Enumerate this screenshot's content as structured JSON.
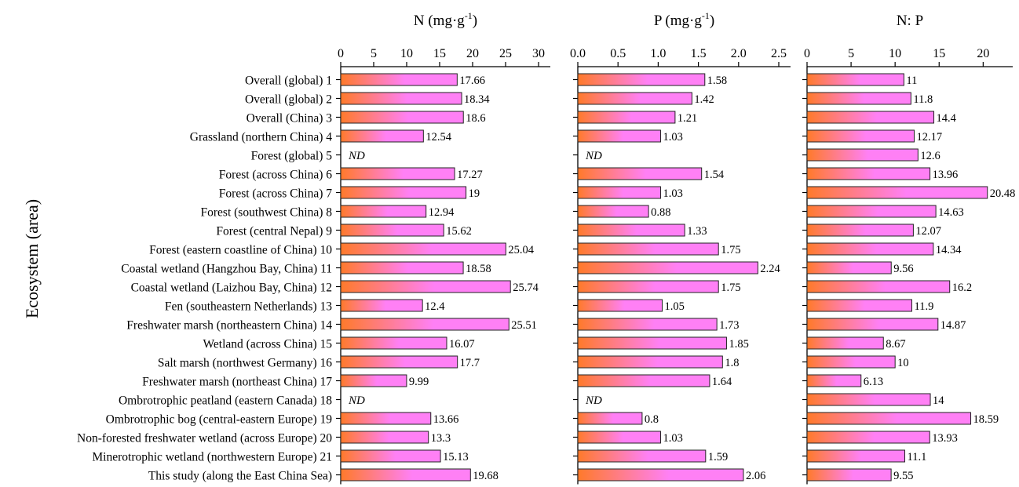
{
  "chart_data": {
    "type": "bar",
    "orientation": "horizontal",
    "ylabel": "Ecosystem (area)",
    "missing_label": "ND",
    "categories": [
      "Overall (global) 1",
      "Overall (global) 2",
      "Overall (China) 3",
      "Grassland (northern China) 4",
      "Forest (global) 5",
      "Forest (across China) 6",
      "Forest (across China) 7",
      "Forest (southwest China) 8",
      "Forest (central Nepal) 9",
      "Forest (eastern coastline of China) 10",
      "Coastal wetland (Hangzhou Bay, China) 11",
      "Coastal wetland (Laizhou Bay, China) 12",
      "Fen (southeastern Netherlands) 13",
      "Freshwater marsh (northeastern China) 14",
      "Wetland (across China) 15",
      "Salt marsh (northwest Germany) 16",
      "Freshwater marsh (northeast China) 17",
      "Ombrotrophic peatland (eastern Canada) 18",
      "Ombrotrophic bog (central-eastern Europe) 19",
      "Non-forested freshwater wetland (across Europe) 20",
      "Minerotrophic wetland (northwestern Europe) 21",
      "This study (along the East China Sea)"
    ],
    "panels": [
      {
        "title_main": "N (mg·g",
        "title_sup": "-1",
        "title_close": ")",
        "xlim": [
          0,
          30
        ],
        "ticks": [
          0,
          5,
          10,
          15,
          20,
          25,
          30
        ],
        "tick_labels": [
          "0",
          "5",
          "10",
          "15",
          "20",
          "25",
          "30"
        ],
        "values": [
          17.66,
          18.34,
          18.6,
          12.54,
          null,
          17.27,
          19,
          12.94,
          15.62,
          25.04,
          18.58,
          25.74,
          12.4,
          25.51,
          16.07,
          17.7,
          9.99,
          null,
          13.66,
          13.3,
          15.13,
          19.68
        ],
        "labels": [
          "17.66",
          "18.34",
          "18.6",
          "12.54",
          "ND",
          "17.27",
          "19",
          "12.94",
          "15.62",
          "25.04",
          "18.58",
          "25.74",
          "12.4",
          "25.51",
          "16.07",
          "17.7",
          "9.99",
          "ND",
          "13.66",
          "13.3",
          "15.13",
          "19.68"
        ]
      },
      {
        "title_main": "P (mg·g",
        "title_sup": "-1",
        "title_close": ")",
        "xlim": [
          0,
          2.5
        ],
        "ticks": [
          0,
          0.5,
          1,
          1.5,
          2,
          2.5
        ],
        "tick_labels": [
          "0.0",
          "0.5",
          "1.0",
          "1.5",
          "2.0",
          "2.5"
        ],
        "values": [
          1.58,
          1.42,
          1.21,
          1.03,
          null,
          1.54,
          1.03,
          0.88,
          1.33,
          1.75,
          2.24,
          1.75,
          1.05,
          1.73,
          1.85,
          1.8,
          1.64,
          null,
          0.8,
          1.03,
          1.59,
          2.06
        ],
        "labels": [
          "1.58",
          "1.42",
          "1.21",
          "1.03",
          "ND",
          "1.54",
          "1.03",
          "0.88",
          "1.33",
          "1.75",
          "2.24",
          "1.75",
          "1.05",
          "1.73",
          "1.85",
          "1.8",
          "1.64",
          "ND",
          "0.8",
          "1.03",
          "1.59",
          "2.06"
        ]
      },
      {
        "title_main": "N: P",
        "title_sup": "",
        "title_close": "",
        "xlim": [
          0,
          23
        ],
        "ticks": [
          0,
          5,
          10,
          15,
          20
        ],
        "tick_labels": [
          "0",
          "5",
          "10",
          "15",
          "20"
        ],
        "values": [
          11,
          11.8,
          14.4,
          12.17,
          12.6,
          13.96,
          20.48,
          14.63,
          12.07,
          14.34,
          9.56,
          16.2,
          11.9,
          14.87,
          8.67,
          10,
          6.13,
          14,
          18.59,
          13.93,
          11.1,
          9.55
        ],
        "labels": [
          "11",
          "11.8",
          "14.4",
          "12.17",
          "12.6",
          "13.96",
          "20.48",
          "14.63",
          "12.07",
          "14.34",
          "9.56",
          "16.2",
          "11.9",
          "14.87",
          "8.67",
          "10",
          "6.13",
          "14",
          "18.59",
          "13.93",
          "11.1",
          "9.55"
        ]
      }
    ],
    "colors": {
      "bar_start": "#FF7A2A",
      "bar_end": "#FF80F5",
      "bar_stroke": "#222222"
    }
  }
}
